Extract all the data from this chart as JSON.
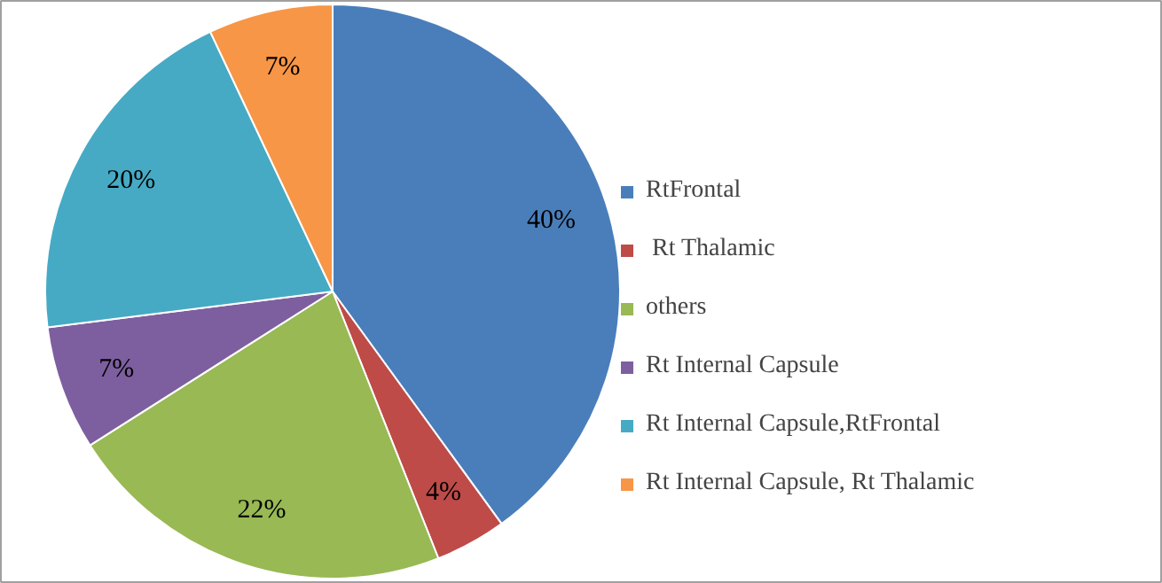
{
  "chart_data": {
    "type": "pie",
    "categories": [
      "RtFrontal",
      " Rt Thalamic",
      "others",
      "Rt Internal Capsule",
      "Rt Internal Capsule,RtFrontal",
      "Rt Internal Capsule, Rt Thalamic"
    ],
    "values": [
      40,
      4,
      22,
      7,
      20,
      7
    ],
    "colors": [
      "#4a7ebb",
      "#be4b48",
      "#98b954",
      "#7d5fa0",
      "#46aac5",
      "#f79646"
    ],
    "value_labels": [
      "40%",
      "4%",
      "22%",
      "7%",
      "20%",
      "7%"
    ],
    "legend": "right"
  }
}
